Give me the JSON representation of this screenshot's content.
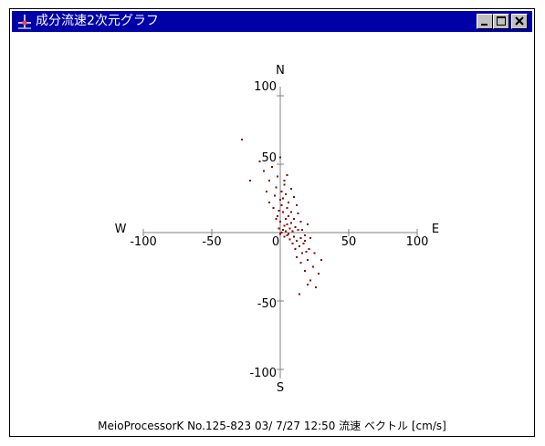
{
  "window": {
    "title": "成分流速2次元グラフ",
    "buttons": [
      "minimize",
      "maximize",
      "close"
    ],
    "title_bar_color": "#0000a8"
  },
  "chart_data": {
    "type": "scatter",
    "xlim": [
      -100,
      100
    ],
    "ylim": [
      -100,
      100
    ],
    "x_ticks": [
      "-100",
      "-50",
      "0",
      "50",
      "100"
    ],
    "y_ticks": [
      "100",
      "50",
      "-50",
      "-100"
    ],
    "directions": {
      "north": "N",
      "south": "S",
      "west": "W",
      "east": "E"
    },
    "point_color": "#8b0000",
    "grid": false,
    "points": [
      [
        -28,
        68
      ],
      [
        -22,
        38
      ],
      [
        -15,
        52
      ],
      [
        -12,
        45
      ],
      [
        -10,
        30
      ],
      [
        -8,
        22
      ],
      [
        -8,
        38
      ],
      [
        -6,
        48
      ],
      [
        -5,
        18
      ],
      [
        -4,
        27
      ],
      [
        -3,
        33
      ],
      [
        -2,
        12
      ],
      [
        -2,
        41
      ],
      [
        0,
        55
      ],
      [
        0,
        8
      ],
      [
        1,
        20
      ],
      [
        2,
        25
      ],
      [
        2,
        15
      ],
      [
        3,
        35
      ],
      [
        3,
        5
      ],
      [
        4,
        10
      ],
      [
        4,
        28
      ],
      [
        5,
        18
      ],
      [
        5,
        -2
      ],
      [
        6,
        12
      ],
      [
        6,
        22
      ],
      [
        7,
        3
      ],
      [
        7,
        -5
      ],
      [
        8,
        15
      ],
      [
        8,
        7
      ],
      [
        9,
        -8
      ],
      [
        9,
        1
      ],
      [
        10,
        10
      ],
      [
        10,
        -3
      ],
      [
        11,
        -12
      ],
      [
        11,
        4
      ],
      [
        12,
        -18
      ],
      [
        12,
        -6
      ],
      [
        13,
        2
      ],
      [
        14,
        -10
      ],
      [
        15,
        -22
      ],
      [
        15,
        -4
      ],
      [
        16,
        -15
      ],
      [
        17,
        -8
      ],
      [
        18,
        -28
      ],
      [
        18,
        -2
      ],
      [
        20,
        -20
      ],
      [
        21,
        -12
      ],
      [
        22,
        -35
      ],
      [
        24,
        -25
      ],
      [
        25,
        -15
      ],
      [
        26,
        -40
      ],
      [
        28,
        -30
      ],
      [
        30,
        -20
      ],
      [
        14,
        -45
      ],
      [
        20,
        -38
      ],
      [
        -1,
        3
      ],
      [
        0,
        -1
      ],
      [
        1,
        0
      ],
      [
        2,
        2
      ],
      [
        3,
        -3
      ],
      [
        4,
        1
      ],
      [
        5,
        6
      ],
      [
        6,
        -1
      ],
      [
        -3,
        10
      ],
      [
        -1,
        16
      ],
      [
        0,
        24
      ],
      [
        1,
        30
      ],
      [
        3,
        38
      ],
      [
        5,
        42
      ],
      [
        8,
        32
      ],
      [
        10,
        26
      ],
      [
        12,
        20
      ],
      [
        13,
        14
      ],
      [
        15,
        8
      ],
      [
        16,
        2
      ],
      [
        18,
        -6
      ],
      [
        19,
        -14
      ],
      [
        20,
        6
      ],
      [
        22,
        -4
      ]
    ]
  },
  "caption": "MeioProcessorK No.125-823 03/ 7/27 12:50  流速 ベクトル [cm/s]"
}
